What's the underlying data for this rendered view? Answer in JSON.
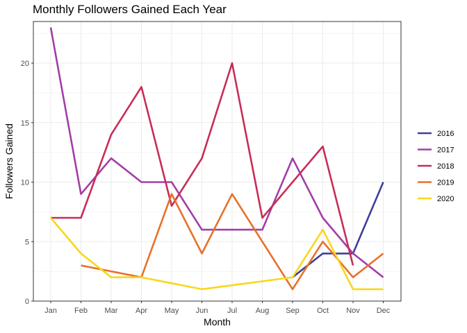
{
  "chart_data": {
    "type": "line",
    "title": "Monthly Followers Gained Each Year",
    "xlabel": "Month",
    "ylabel": "Followers Gained",
    "categories": [
      "Jan",
      "Feb",
      "Mar",
      "Apr",
      "May",
      "Jun",
      "Jul",
      "Aug",
      "Sep",
      "Oct",
      "Nov",
      "Dec"
    ],
    "ylim": [
      0,
      23.5
    ],
    "yticks": [
      0,
      5,
      10,
      15,
      20
    ],
    "grid": true,
    "legend_position": "right",
    "series": [
      {
        "name": "2016",
        "color": "#3f3f9a",
        "values": [
          null,
          null,
          null,
          null,
          null,
          null,
          null,
          null,
          2,
          4,
          4,
          10
        ]
      },
      {
        "name": "2017",
        "color": "#a23ea6",
        "values": [
          23,
          9,
          12,
          10,
          10,
          6,
          6,
          6,
          12,
          7,
          4,
          2
        ]
      },
      {
        "name": "2018",
        "color": "#c82c57",
        "values": [
          7,
          7,
          14,
          18,
          8,
          12,
          20,
          7,
          10,
          13,
          3,
          null
        ]
      },
      {
        "name": "2019",
        "color": "#e8702a",
        "values": [
          null,
          3,
          null,
          2,
          9,
          4,
          9,
          null,
          1,
          5,
          2,
          4
        ]
      },
      {
        "name": "2020",
        "color": "#f9d71c",
        "values": [
          7,
          4,
          2,
          2,
          null,
          1,
          null,
          null,
          2,
          6,
          1,
          1
        ]
      }
    ]
  }
}
